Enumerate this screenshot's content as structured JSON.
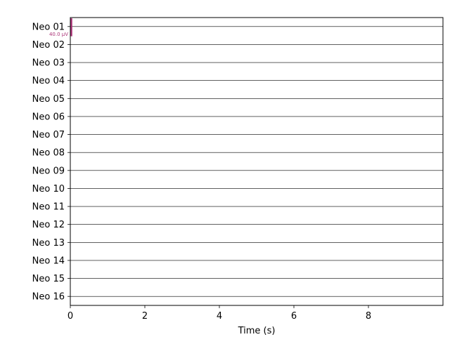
{
  "chart_data": {
    "type": "line",
    "xlabel": "Time (s)",
    "ylabel": "",
    "xlim": [
      0,
      10
    ],
    "xticks": [
      0,
      2,
      4,
      6,
      8
    ],
    "channels": [
      "Neo 01",
      "Neo 02",
      "Neo 03",
      "Neo 04",
      "Neo 05",
      "Neo 06",
      "Neo 07",
      "Neo 08",
      "Neo 09",
      "Neo 10",
      "Neo 11",
      "Neo 12",
      "Neo 13",
      "Neo 14",
      "Neo 15",
      "Neo 16"
    ],
    "series": [
      {
        "name": "Neo 01",
        "x": [
          0,
          10
        ],
        "values": [
          0,
          0
        ]
      },
      {
        "name": "Neo 02",
        "x": [
          0,
          10
        ],
        "values": [
          0,
          0
        ]
      },
      {
        "name": "Neo 03",
        "x": [
          0,
          10
        ],
        "values": [
          0,
          0
        ]
      },
      {
        "name": "Neo 04",
        "x": [
          0,
          10
        ],
        "values": [
          0,
          0
        ]
      },
      {
        "name": "Neo 05",
        "x": [
          0,
          10
        ],
        "values": [
          0,
          0
        ]
      },
      {
        "name": "Neo 06",
        "x": [
          0,
          10
        ],
        "values": [
          0,
          0
        ]
      },
      {
        "name": "Neo 07",
        "x": [
          0,
          10
        ],
        "values": [
          0,
          0
        ]
      },
      {
        "name": "Neo 08",
        "x": [
          0,
          10
        ],
        "values": [
          0,
          0
        ]
      },
      {
        "name": "Neo 09",
        "x": [
          0,
          10
        ],
        "values": [
          0,
          0
        ]
      },
      {
        "name": "Neo 10",
        "x": [
          0,
          10
        ],
        "values": [
          0,
          0
        ]
      },
      {
        "name": "Neo 11",
        "x": [
          0,
          10
        ],
        "values": [
          0,
          0
        ]
      },
      {
        "name": "Neo 12",
        "x": [
          0,
          10
        ],
        "values": [
          0,
          0
        ]
      },
      {
        "name": "Neo 13",
        "x": [
          0,
          10
        ],
        "values": [
          0,
          0
        ]
      },
      {
        "name": "Neo 14",
        "x": [
          0,
          10
        ],
        "values": [
          0,
          0
        ]
      },
      {
        "name": "Neo 15",
        "x": [
          0,
          10
        ],
        "values": [
          0,
          0
        ]
      },
      {
        "name": "Neo 16",
        "x": [
          0,
          10
        ],
        "values": [
          0,
          0
        ]
      }
    ],
    "trace_color": "#000000",
    "scale_bar": {
      "label": "40.0 µV",
      "color": "#aa3377",
      "channel": "Neo 01"
    },
    "grid": false,
    "legend": "none"
  }
}
